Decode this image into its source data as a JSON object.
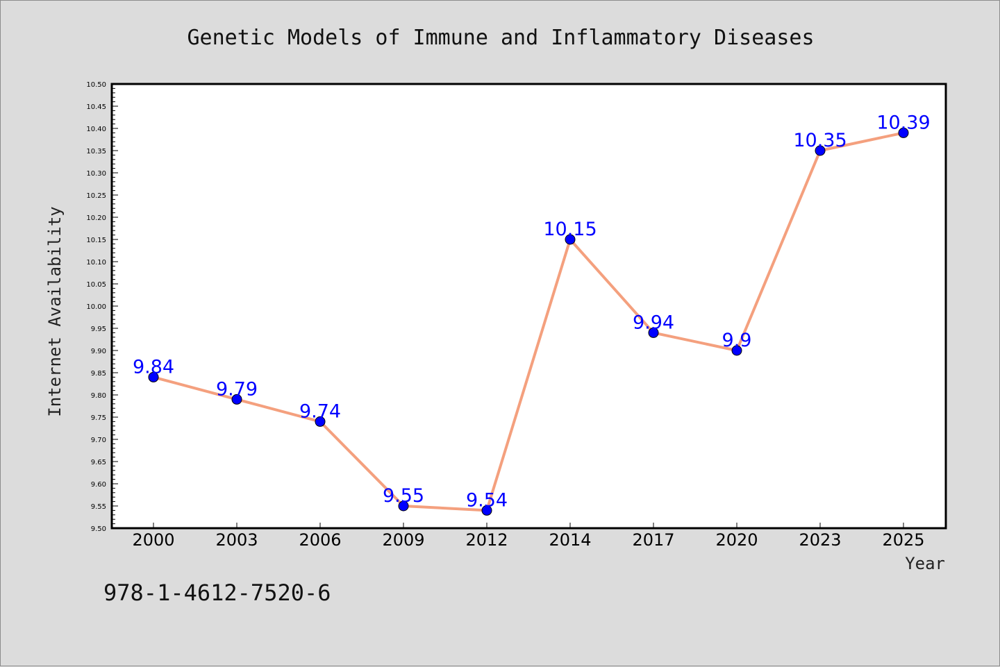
{
  "chart_data": {
    "type": "line",
    "title": "Genetic Models of Immune and Inflammatory Diseases",
    "xlabel": "Year",
    "ylabel": "Internet Availability",
    "categories": [
      "2000",
      "2003",
      "2006",
      "2009",
      "2012",
      "2014",
      "2017",
      "2020",
      "2023",
      "2025"
    ],
    "values": [
      9.84,
      9.79,
      9.74,
      9.55,
      9.54,
      10.15,
      9.94,
      9.9,
      10.35,
      10.39
    ],
    "data_labels": [
      "9.84",
      "9.79",
      "9.74",
      "9.55",
      "9.54",
      "10.15",
      "9.94",
      "9.9",
      "10.35",
      "10.39"
    ],
    "ylim": [
      9.5,
      10.5
    ],
    "yticks": [
      "9.50",
      "9.55",
      "9.60",
      "9.65",
      "9.70",
      "9.75",
      "9.80",
      "9.85",
      "9.90",
      "9.95",
      "10.00",
      "10.05",
      "10.10",
      "10.15",
      "10.20",
      "10.25",
      "10.30",
      "10.35",
      "10.40",
      "10.45",
      "10.50"
    ],
    "grid": false,
    "legend": "none",
    "line_color": "#f4a07e",
    "marker_color": "#0000ff",
    "label_color": "#0000ff",
    "background_color": "#dcdcdc",
    "plot_background": "#ffffff"
  },
  "footer": {
    "isbn": "978-1-4612-7520-6"
  }
}
